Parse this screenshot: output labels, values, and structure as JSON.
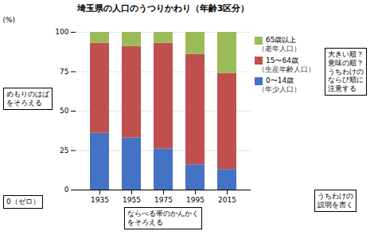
{
  "chart_data": {
    "type": "bar",
    "stacked": true,
    "title": "埼玉県の人口のうつりかわり（年齢3区分）",
    "ylabel": "(%)",
    "categories": [
      "1935",
      "1955",
      "1975",
      "1995",
      "2015"
    ],
    "series": [
      {
        "name": "0〜14歳\n（年少人口）",
        "color": "#4472C4",
        "values": [
          36,
          33,
          26,
          16,
          13
        ]
      },
      {
        "name": "15〜64歳\n（生産年齢人口）",
        "color": "#C0504D",
        "values": [
          57,
          58,
          67,
          70,
          61
        ]
      },
      {
        "name": "65歳以上\n（老年人口）",
        "color": "#9BBB59",
        "values": [
          7,
          9,
          7,
          14,
          26
        ]
      }
    ],
    "ylim": [
      0,
      100
    ],
    "yticks": [
      0,
      25,
      50,
      75,
      100
    ],
    "grid": true,
    "annotations": [
      "大きい順？\n意味の順？\nうちわけの\nならび順に\n注意する",
      "めもりのはば\nをそろえる",
      "0（ゼロ）",
      "ならべる帯のかんかく\nをそろえる",
      "うちわけの\n説明を書く"
    ]
  }
}
